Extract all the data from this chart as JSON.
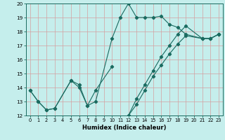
{
  "xlabel": "Humidex (Indice chaleur)",
  "bg_color": "#c5eeec",
  "grid_color": "#d4a0a0",
  "line_color": "#1a6b60",
  "marker_color": "#1a6b60",
  "xlim": [
    -0.5,
    23.5
  ],
  "ylim": [
    12,
    20
  ],
  "xticks": [
    0,
    1,
    2,
    3,
    4,
    5,
    6,
    7,
    8,
    9,
    10,
    11,
    12,
    13,
    14,
    15,
    16,
    17,
    18,
    19,
    20,
    21,
    22,
    23
  ],
  "yticks": [
    12,
    13,
    14,
    15,
    16,
    17,
    18,
    19,
    20
  ],
  "s1_x": [
    0,
    1,
    2,
    3,
    5,
    6,
    7,
    8,
    10,
    11,
    12,
    13,
    14,
    15,
    16,
    17,
    18,
    19,
    21,
    22,
    23
  ],
  "s1_y": [
    13.8,
    13.0,
    12.4,
    12.5,
    14.5,
    14.0,
    12.7,
    13.0,
    17.5,
    19.0,
    20.0,
    19.0,
    19.0,
    19.0,
    19.1,
    18.5,
    18.3,
    17.8,
    17.5,
    17.5,
    17.8
  ],
  "s2_x": [
    0,
    1,
    2,
    3,
    5,
    6,
    7,
    8,
    10
  ],
  "s2_y": [
    13.8,
    13.0,
    12.4,
    12.5,
    14.5,
    14.2,
    12.7,
    13.8,
    15.5
  ],
  "s3_x": [
    12,
    13,
    14,
    15,
    16,
    17,
    18,
    19,
    21,
    22,
    23
  ],
  "s3_y": [
    12.0,
    13.2,
    14.2,
    15.2,
    16.2,
    17.0,
    17.8,
    18.4,
    17.5,
    17.5,
    17.8
  ],
  "s4_x": [
    12,
    13,
    14,
    15,
    16,
    17,
    18,
    19,
    21,
    22,
    23
  ],
  "s4_y": [
    12.0,
    12.8,
    13.8,
    14.8,
    15.6,
    16.4,
    17.1,
    17.7,
    17.5,
    17.5,
    17.8
  ]
}
